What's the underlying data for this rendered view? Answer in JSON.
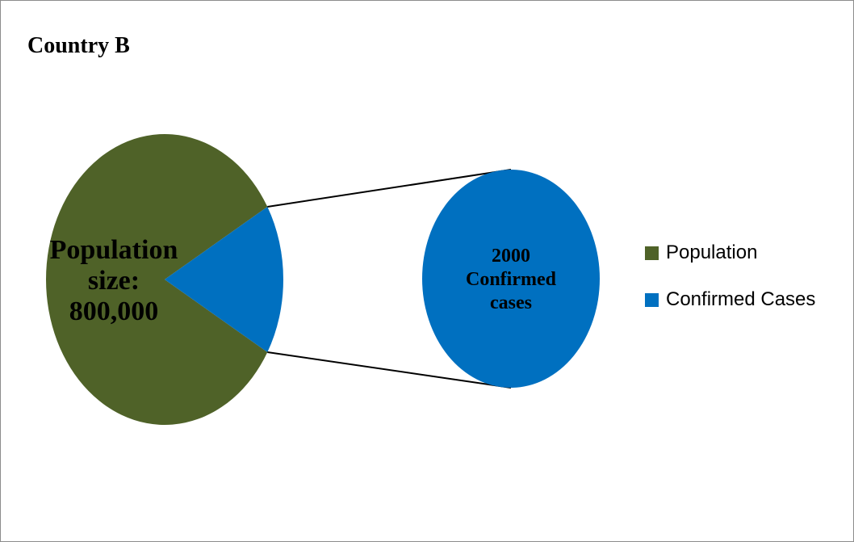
{
  "chart_data": {
    "type": "pie",
    "title": "Country B",
    "slices": [
      {
        "name": "Population",
        "value": 800000,
        "color": "#4f6228"
      },
      {
        "name": "Confirmed Cases",
        "value": 2000,
        "color": "#0070c0"
      }
    ],
    "pie_label": [
      "Population",
      "size:",
      "800,000"
    ],
    "zoom_label": [
      "2000",
      "Confirmed",
      "cases"
    ],
    "legend_position": "right"
  }
}
